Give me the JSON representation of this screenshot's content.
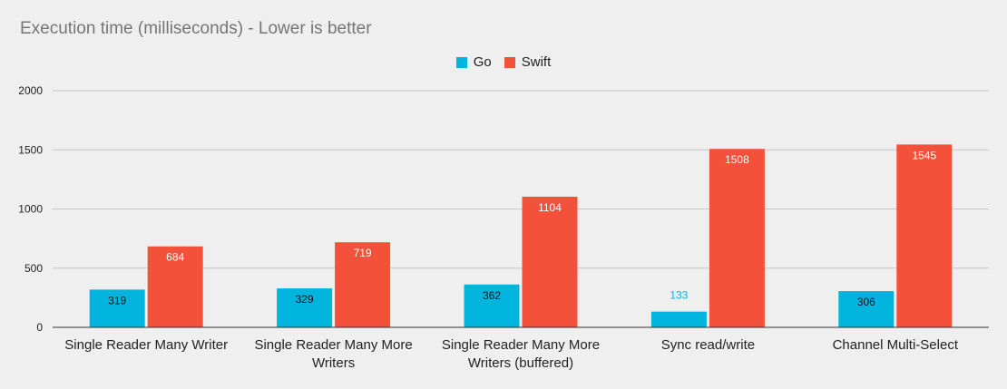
{
  "chart_data": {
    "type": "bar",
    "title": "Execution time (milliseconds) - Lower is better",
    "categories": [
      [
        "Single Reader Many Writer"
      ],
      [
        "Single Reader Many More",
        "Writers"
      ],
      [
        "Single Reader Many More",
        "Writers (buffered)"
      ],
      [
        "Sync read/write"
      ],
      [
        "Channel Multi-Select"
      ]
    ],
    "series": [
      {
        "name": "Go",
        "color": "#00b4de",
        "values": [
          319,
          329,
          362,
          133,
          306
        ]
      },
      {
        "name": "Swift",
        "color": "#f4513a",
        "values": [
          684,
          719,
          1104,
          1508,
          1545
        ]
      }
    ],
    "ylim": [
      0,
      2000
    ],
    "yticks": [
      0,
      500,
      1000,
      1500,
      2000
    ],
    "grid": true,
    "legend_position": "top-center",
    "data_labels": true
  }
}
